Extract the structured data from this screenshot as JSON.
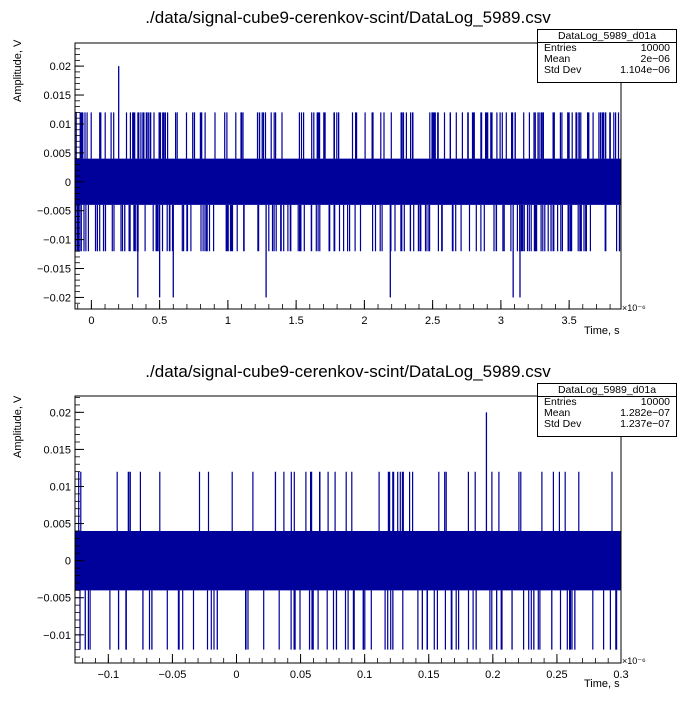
{
  "chart_data": [
    {
      "type": "line",
      "title": "./data/signal-cube9-cerenkov-scint/DataLog_5989.csv",
      "xlabel": "Time, s",
      "ylabel": "Amplitude, V",
      "x_exponent": "×10⁻⁶",
      "xlim": [
        -0.12,
        3.88
      ],
      "ylim": [
        -0.022,
        0.024
      ],
      "x_ticks": [
        "0",
        "0.5",
        "1",
        "1.5",
        "2",
        "2.5",
        "3",
        "3.5"
      ],
      "x_tick_values": [
        0,
        0.5,
        1,
        1.5,
        2,
        2.5,
        3,
        3.5
      ],
      "y_ticks": [
        "−0.02",
        "−0.015",
        "−0.01",
        "−0.005",
        "0",
        "0.005",
        "0.01",
        "0.015",
        "0.02"
      ],
      "y_tick_values": [
        -0.02,
        -0.015,
        -0.01,
        -0.005,
        0,
        0.005,
        0.01,
        0.015,
        0.02
      ],
      "series_color": "#00009a",
      "band": {
        "low": -0.004,
        "high": 0.004
      },
      "spikes_up": [
        {
          "x": 0.2,
          "y": 0.02
        }
      ],
      "spikes_down": [
        {
          "x": 0.34,
          "y": -0.02
        },
        {
          "x": 0.5,
          "y": -0.02
        },
        {
          "x": 0.6,
          "y": -0.02
        },
        {
          "x": 1.28,
          "y": -0.02
        },
        {
          "x": 2.19,
          "y": -0.02
        },
        {
          "x": 3.09,
          "y": -0.02
        },
        {
          "x": 3.14,
          "y": -0.02
        }
      ],
      "spike_levels": {
        "high": 0.012,
        "low": -0.012
      },
      "stats": {
        "name": "DataLog_5989_d01a",
        "rows": [
          {
            "label": "Entries",
            "value": "10000"
          },
          {
            "label": "Mean",
            "value": "2e−06"
          },
          {
            "label": "Std Dev",
            "value": "1.104e−06"
          }
        ]
      }
    },
    {
      "type": "line",
      "title": "./data/signal-cube9-cerenkov-scint/DataLog_5989.csv",
      "xlabel": "Time, s",
      "ylabel": "Amplitude, V",
      "x_exponent": "×10⁻⁶",
      "xlim": [
        -0.126,
        0.3
      ],
      "ylim": [
        -0.0138,
        0.0222
      ],
      "x_ticks": [
        "−0.1",
        "−0.05",
        "0",
        "0.05",
        "0.1",
        "0.15",
        "0.2",
        "0.25",
        "0.3"
      ],
      "x_tick_values": [
        -0.1,
        -0.05,
        0,
        0.05,
        0.1,
        0.15,
        0.2,
        0.25,
        0.3
      ],
      "y_ticks": [
        "−0.01",
        "−0.005",
        "0",
        "0.005",
        "0.01",
        "0.015",
        "0.02"
      ],
      "y_tick_values": [
        -0.01,
        -0.005,
        0,
        0.005,
        0.01,
        0.015,
        0.02
      ],
      "series_color": "#00009a",
      "band": {
        "low": -0.004,
        "high": 0.004
      },
      "spikes_up": [
        {
          "x": 0.195,
          "y": 0.02
        }
      ],
      "spikes_down": [
        {
          "x": -0.118,
          "y": -0.012
        },
        {
          "x": -0.092,
          "y": -0.012
        },
        {
          "x": -0.086,
          "y": -0.012
        },
        {
          "x": -0.073,
          "y": -0.012
        },
        {
          "x": -0.066,
          "y": -0.012
        },
        {
          "x": -0.015,
          "y": -0.012
        },
        {
          "x": 0.057,
          "y": -0.012
        },
        {
          "x": 0.078,
          "y": -0.012
        },
        {
          "x": 0.099,
          "y": -0.012
        },
        {
          "x": 0.122,
          "y": -0.012
        },
        {
          "x": 0.145,
          "y": -0.012
        },
        {
          "x": 0.168,
          "y": -0.012
        },
        {
          "x": 0.187,
          "y": -0.012
        },
        {
          "x": 0.203,
          "y": -0.012
        },
        {
          "x": 0.215,
          "y": -0.012
        },
        {
          "x": 0.232,
          "y": -0.012
        },
        {
          "x": 0.246,
          "y": -0.012
        },
        {
          "x": 0.264,
          "y": -0.012
        },
        {
          "x": 0.296,
          "y": -0.012
        }
      ],
      "spike_levels": {
        "high": 0.012,
        "low": -0.012
      },
      "stats": {
        "name": "DataLog_5989_d01a",
        "rows": [
          {
            "label": "Entries",
            "value": "10000"
          },
          {
            "label": "Mean",
            "value": "1.282e−07"
          },
          {
            "label": "Std Dev",
            "value": "1.237e−07"
          }
        ]
      }
    }
  ]
}
